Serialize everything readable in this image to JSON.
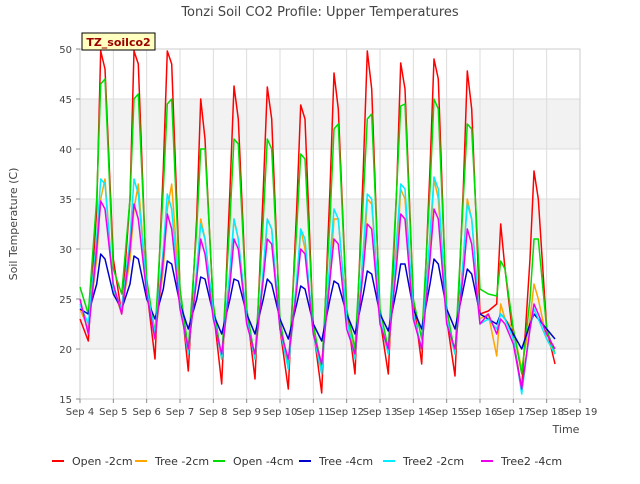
{
  "chart_data": {
    "type": "line",
    "title": "Tonzi Soil CO2 Profile: Upper Temperatures",
    "xlabel": "Time",
    "ylabel": "Soil Temperature (C)",
    "ylim": [
      15,
      50
    ],
    "xlim": [
      4,
      19
    ],
    "yticks": [
      15,
      20,
      25,
      30,
      35,
      40,
      45,
      50
    ],
    "xticks": [
      4,
      5,
      6,
      7,
      8,
      9,
      10,
      11,
      12,
      13,
      14,
      15,
      16,
      17,
      18,
      19
    ],
    "xtick_labels": [
      "Sep 4",
      "Sep 5",
      "Sep 6",
      "Sep 7",
      "Sep 8",
      "Sep 9",
      "Sep 10",
      "Sep 11",
      "Sep 12",
      "Sep 13",
      "Sep 14",
      "Sep 15",
      "Sep 16",
      "Sep 17",
      "Sep 18",
      "Sep 19"
    ],
    "grid": true,
    "band_shading": true,
    "site_label": "TZ_soilco2",
    "legend_position": "bottom",
    "series": [
      {
        "name": "Open -2cm",
        "color": "#ff0000",
        "x": [
          4.0,
          4.25,
          4.5,
          4.62,
          4.75,
          5.0,
          5.25,
          5.5,
          5.62,
          5.75,
          6.0,
          6.25,
          6.5,
          6.62,
          6.75,
          7.0,
          7.25,
          7.5,
          7.62,
          7.75,
          8.0,
          8.25,
          8.5,
          8.62,
          8.75,
          9.0,
          9.25,
          9.5,
          9.62,
          9.75,
          10.0,
          10.25,
          10.5,
          10.62,
          10.75,
          11.0,
          11.25,
          11.5,
          11.62,
          11.75,
          12.0,
          12.25,
          12.5,
          12.62,
          12.75,
          13.0,
          13.25,
          13.5,
          13.62,
          13.75,
          14.0,
          14.25,
          14.5,
          14.62,
          14.75,
          15.0,
          15.25,
          15.5,
          15.62,
          15.75,
          16.0,
          16.25,
          16.5,
          16.62,
          16.75,
          17.0,
          17.25,
          17.5,
          17.62,
          17.75,
          18.0,
          18.25
        ],
        "y": [
          23.0,
          20.8,
          34.0,
          49.8,
          48.0,
          29.0,
          23.5,
          35.0,
          49.8,
          48.5,
          26.0,
          19.0,
          38.0,
          49.8,
          48.5,
          26.0,
          17.8,
          33.0,
          45.0,
          41.0,
          24.0,
          16.5,
          36.0,
          46.3,
          43.0,
          24.0,
          17.0,
          36.0,
          46.2,
          43.0,
          22.0,
          16.0,
          34.0,
          44.4,
          43.0,
          22.0,
          15.6,
          36.0,
          47.6,
          44.0,
          24.0,
          17.5,
          38.0,
          49.8,
          46.0,
          23.0,
          17.5,
          36.0,
          48.6,
          46.0,
          25.0,
          18.5,
          38.0,
          49.0,
          47.0,
          23.0,
          17.3,
          36.0,
          47.8,
          44.0,
          23.5,
          23.8,
          24.5,
          32.5,
          28.0,
          21.0,
          16.0,
          29.0,
          37.8,
          35.0,
          22.0,
          18.5
        ]
      },
      {
        "name": "Tree -2cm",
        "color": "#ffa500",
        "x": [
          4.0,
          4.25,
          4.5,
          4.62,
          4.75,
          5.0,
          5.25,
          5.5,
          5.62,
          5.75,
          6.0,
          6.25,
          6.5,
          6.62,
          6.75,
          7.0,
          7.25,
          7.5,
          7.62,
          7.75,
          8.0,
          8.25,
          8.5,
          8.62,
          8.75,
          9.0,
          9.25,
          9.5,
          9.62,
          9.75,
          10.0,
          10.25,
          10.5,
          10.62,
          10.75,
          11.0,
          11.25,
          11.5,
          11.62,
          11.75,
          12.0,
          12.25,
          12.5,
          12.62,
          12.75,
          13.0,
          13.25,
          13.5,
          13.62,
          13.75,
          14.0,
          14.25,
          14.5,
          14.62,
          14.75,
          15.0,
          15.25,
          15.5,
          15.62,
          15.75,
          16.0,
          16.25,
          16.5,
          16.62,
          16.75,
          17.0,
          17.25,
          17.5,
          17.62,
          17.75,
          18.0,
          18.25
        ],
        "y": [
          24.0,
          22.0,
          29.0,
          35.0,
          37.0,
          26.0,
          23.5,
          29.0,
          34.0,
          36.5,
          26.0,
          21.0,
          28.0,
          34.0,
          36.5,
          25.0,
          20.0,
          27.0,
          33.0,
          31.0,
          23.5,
          19.0,
          27.0,
          33.0,
          31.0,
          23.0,
          19.0,
          27.0,
          33.0,
          32.0,
          22.0,
          18.5,
          26.0,
          32.0,
          30.0,
          22.0,
          18.5,
          27.0,
          33.0,
          33.0,
          23.0,
          19.5,
          28.0,
          35.0,
          34.5,
          23.0,
          19.5,
          29.0,
          36.0,
          35.0,
          23.5,
          20.0,
          30.0,
          37.0,
          35.0,
          23.0,
          19.5,
          29.0,
          35.0,
          33.0,
          23.0,
          23.5,
          19.3,
          24.5,
          23.0,
          22.0,
          18.0,
          23.0,
          26.5,
          25.0,
          21.0,
          19.5
        ]
      },
      {
        "name": "Open -4cm",
        "color": "#00dd00",
        "x": [
          4.0,
          4.25,
          4.5,
          4.62,
          4.75,
          5.0,
          5.25,
          5.5,
          5.62,
          5.75,
          6.0,
          6.25,
          6.5,
          6.62,
          6.75,
          7.0,
          7.25,
          7.5,
          7.62,
          7.75,
          8.0,
          8.25,
          8.5,
          8.62,
          8.75,
          9.0,
          9.25,
          9.5,
          9.62,
          9.75,
          10.0,
          10.25,
          10.5,
          10.62,
          10.75,
          11.0,
          11.25,
          11.5,
          11.62,
          11.75,
          12.0,
          12.25,
          12.5,
          12.62,
          12.75,
          13.0,
          13.25,
          13.5,
          13.62,
          13.75,
          14.0,
          14.25,
          14.5,
          14.62,
          14.75,
          15.0,
          15.25,
          15.5,
          15.62,
          15.75,
          16.0,
          16.25,
          16.5,
          16.62,
          16.75,
          17.0,
          17.25,
          17.5,
          17.62,
          17.75,
          18.0,
          18.25
        ],
        "y": [
          26.2,
          23.5,
          35.0,
          46.5,
          47.0,
          28.0,
          25.5,
          35.0,
          45.0,
          45.5,
          27.0,
          21.5,
          36.0,
          44.5,
          45.0,
          26.0,
          20.0,
          32.0,
          40.0,
          40.0,
          24.5,
          19.0,
          33.0,
          41.0,
          40.5,
          24.0,
          19.0,
          33.0,
          41.0,
          40.0,
          23.0,
          18.0,
          32.0,
          39.5,
          39.0,
          22.5,
          18.0,
          33.0,
          42.0,
          42.5,
          24.0,
          20.0,
          35.0,
          43.0,
          43.5,
          24.0,
          20.0,
          36.0,
          44.3,
          44.5,
          25.0,
          21.0,
          36.0,
          45.0,
          44.0,
          24.0,
          19.5,
          35.0,
          42.5,
          42.0,
          26.0,
          25.5,
          25.3,
          28.8,
          28.0,
          22.0,
          17.5,
          25.0,
          31.0,
          31.0,
          22.0,
          19.5
        ]
      },
      {
        "name": "Tree -4cm",
        "color": "#0000cc",
        "x": [
          4.0,
          4.25,
          4.5,
          4.62,
          4.75,
          5.0,
          5.25,
          5.5,
          5.62,
          5.75,
          6.0,
          6.25,
          6.5,
          6.62,
          6.75,
          7.0,
          7.25,
          7.5,
          7.62,
          7.75,
          8.0,
          8.25,
          8.5,
          8.62,
          8.75,
          9.0,
          9.25,
          9.5,
          9.62,
          9.75,
          10.0,
          10.25,
          10.5,
          10.62,
          10.75,
          11.0,
          11.25,
          11.5,
          11.62,
          11.75,
          12.0,
          12.25,
          12.5,
          12.62,
          12.75,
          13.0,
          13.25,
          13.5,
          13.62,
          13.75,
          14.0,
          14.25,
          14.5,
          14.62,
          14.75,
          15.0,
          15.25,
          15.5,
          15.62,
          15.75,
          16.0,
          16.25,
          16.5,
          16.62,
          16.75,
          17.0,
          17.25,
          17.5,
          17.62,
          17.75,
          18.0,
          18.25
        ],
        "y": [
          24.0,
          23.5,
          26.5,
          29.5,
          29.0,
          25.5,
          24.0,
          26.5,
          29.3,
          29.0,
          25.0,
          23.0,
          26.0,
          28.8,
          28.5,
          24.5,
          22.0,
          25.0,
          27.2,
          27.0,
          23.5,
          21.5,
          25.0,
          27.0,
          26.8,
          23.5,
          21.5,
          25.0,
          27.0,
          26.5,
          23.0,
          21.0,
          24.5,
          26.3,
          26.0,
          22.5,
          20.8,
          25.0,
          26.8,
          26.5,
          23.5,
          21.5,
          25.5,
          27.8,
          27.5,
          23.5,
          21.8,
          26.0,
          28.5,
          28.5,
          24.0,
          22.0,
          26.5,
          29.0,
          28.5,
          24.0,
          22.0,
          26.0,
          28.0,
          27.5,
          23.5,
          23.0,
          22.5,
          23.5,
          23.0,
          21.5,
          20.0,
          22.5,
          23.5,
          23.0,
          22.0,
          21.0
        ]
      },
      {
        "name": "Tree2 -2cm",
        "color": "#00eeff",
        "x": [
          4.0,
          4.25,
          4.5,
          4.62,
          4.75,
          5.0,
          5.25,
          5.5,
          5.62,
          5.75,
          6.0,
          6.25,
          6.5,
          6.62,
          6.75,
          7.0,
          7.25,
          7.5,
          7.62,
          7.75,
          8.0,
          8.25,
          8.5,
          8.62,
          8.75,
          9.0,
          9.25,
          9.5,
          9.62,
          9.75,
          10.0,
          10.25,
          10.5,
          10.62,
          10.75,
          11.0,
          11.25,
          11.5,
          11.62,
          11.75,
          12.0,
          12.25,
          12.5,
          12.62,
          12.75,
          13.0,
          13.25,
          13.5,
          13.62,
          13.75,
          14.0,
          14.25,
          14.5,
          14.62,
          14.75,
          15.0,
          15.25,
          15.5,
          15.62,
          15.75,
          16.0,
          16.25,
          16.5,
          16.62,
          16.75,
          17.0,
          17.25,
          17.5,
          17.62,
          17.75,
          18.0,
          18.25
        ],
        "y": [
          24.5,
          22.5,
          31.0,
          37.0,
          36.5,
          26.0,
          24.0,
          31.0,
          37.0,
          35.5,
          26.0,
          21.5,
          30.0,
          35.5,
          34.0,
          24.5,
          19.5,
          28.0,
          32.5,
          31.0,
          23.5,
          19.0,
          28.0,
          33.0,
          31.0,
          23.0,
          19.0,
          28.0,
          33.0,
          32.0,
          22.0,
          18.0,
          27.0,
          32.0,
          31.0,
          21.5,
          17.5,
          29.0,
          34.0,
          33.0,
          23.0,
          19.0,
          30.0,
          35.5,
          35.0,
          23.0,
          19.5,
          31.0,
          36.5,
          36.0,
          23.5,
          20.0,
          31.5,
          37.2,
          36.0,
          23.0,
          19.5,
          29.0,
          34.5,
          33.0,
          22.5,
          23.0,
          22.0,
          23.5,
          23.0,
          21.0,
          15.5,
          22.0,
          24.0,
          23.0,
          21.0,
          19.5
        ]
      },
      {
        "name": "Tree2 -4cm",
        "color": "#ee00ee",
        "x": [
          4.0,
          4.25,
          4.5,
          4.62,
          4.75,
          5.0,
          5.25,
          5.5,
          5.62,
          5.75,
          6.0,
          6.25,
          6.5,
          6.62,
          6.75,
          7.0,
          7.25,
          7.5,
          7.62,
          7.75,
          8.0,
          8.25,
          8.5,
          8.62,
          8.75,
          9.0,
          9.25,
          9.5,
          9.62,
          9.75,
          10.0,
          10.25,
          10.5,
          10.62,
          10.75,
          11.0,
          11.25,
          11.5,
          11.62,
          11.75,
          12.0,
          12.25,
          12.5,
          12.62,
          12.75,
          13.0,
          13.25,
          13.5,
          13.62,
          13.75,
          14.0,
          14.25,
          14.5,
          14.62,
          14.75,
          15.0,
          15.25,
          15.5,
          15.62,
          15.75,
          16.0,
          16.25,
          16.5,
          16.62,
          16.75,
          17.0,
          17.25,
          17.5,
          17.62,
          17.75,
          18.0,
          18.25
        ],
        "y": [
          25.0,
          21.5,
          30.0,
          34.8,
          34.0,
          26.5,
          23.5,
          30.0,
          34.5,
          33.0,
          25.5,
          21.0,
          29.0,
          33.5,
          32.0,
          24.0,
          20.0,
          27.0,
          31.0,
          29.5,
          23.0,
          19.5,
          26.5,
          31.0,
          30.0,
          22.5,
          19.5,
          27.0,
          31.0,
          30.5,
          22.0,
          19.0,
          26.0,
          30.0,
          29.5,
          21.5,
          18.5,
          27.0,
          31.0,
          30.5,
          22.0,
          19.5,
          28.0,
          32.5,
          32.0,
          22.5,
          20.0,
          28.5,
          33.5,
          33.0,
          23.0,
          20.0,
          29.0,
          34.0,
          33.0,
          22.5,
          20.0,
          27.5,
          32.0,
          30.5,
          22.5,
          23.5,
          21.5,
          23.0,
          22.5,
          20.5,
          16.0,
          22.0,
          24.5,
          23.5,
          21.5,
          20.0
        ]
      }
    ]
  }
}
